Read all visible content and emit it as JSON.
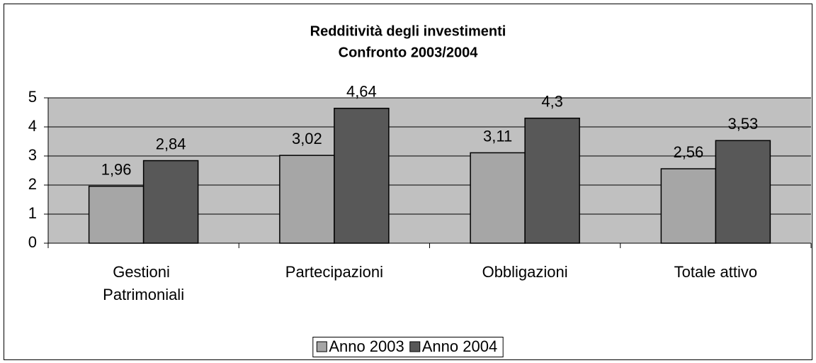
{
  "chart_data": {
    "type": "bar",
    "title": "Redditività degli investimenti",
    "subtitle": "Confronto 2003/2004",
    "categories": [
      "Gestioni Patrimoniali",
      "Partecipazioni",
      "Obbligazioni",
      "Totale attivo"
    ],
    "series": [
      {
        "name": "Anno 2003",
        "color": "#a6a6a6",
        "values": [
          1.96,
          3.02,
          3.11,
          2.56
        ],
        "value_labels": [
          "1,96",
          "3,02",
          "3,11",
          "2,56"
        ]
      },
      {
        "name": "Anno 2004",
        "color": "#585858",
        "values": [
          2.84,
          4.64,
          4.3,
          3.53
        ],
        "value_labels": [
          "2,84",
          "4,64",
          "4,3",
          "3,53"
        ]
      }
    ],
    "ylim": [
      0,
      5
    ],
    "yticks": [
      0,
      1,
      2,
      3,
      4,
      5
    ],
    "grid": true,
    "legend": "bottom"
  }
}
